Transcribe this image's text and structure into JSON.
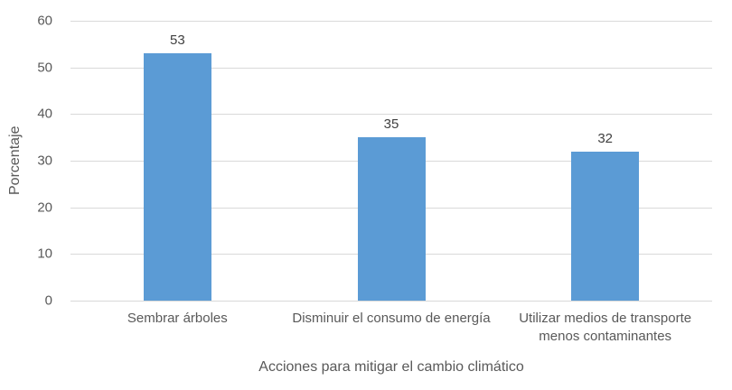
{
  "chart_data": {
    "type": "bar",
    "title": "",
    "categories": [
      "Sembrar árboles",
      "Disminuir el consumo de energía",
      "Utilizar medios de transporte menos contaminantes"
    ],
    "values": [
      53,
      35,
      32
    ],
    "data_labels": [
      53,
      35,
      32
    ],
    "xlabel": "Acciones para mitigar el cambio climático",
    "ylabel": "Porcentaje",
    "ylim": [
      0,
      60
    ],
    "yticks": [
      0,
      10,
      20,
      30,
      40,
      50,
      60
    ],
    "grid": true,
    "legend_position": "none",
    "bar_color": "#5b9bd5",
    "gridline_color": "#d9d9d9",
    "axis_text_color": "#595959",
    "data_label_color": "#404040"
  }
}
